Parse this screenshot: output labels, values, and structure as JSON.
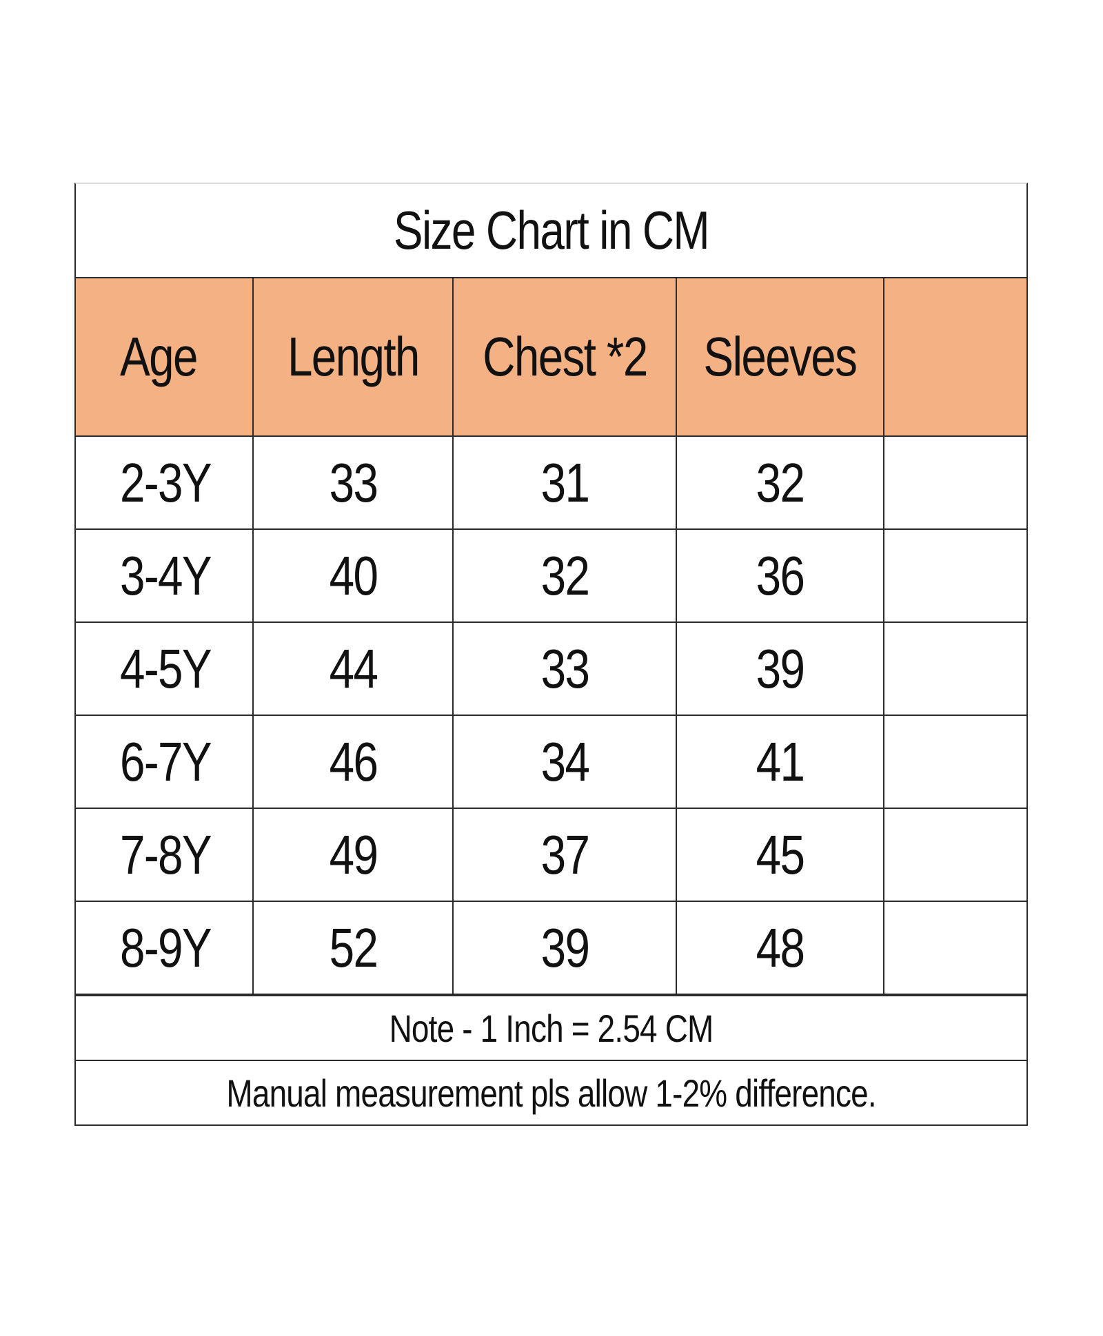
{
  "title": "Size Chart in CM",
  "headers": [
    "Age",
    "Length",
    "Chest *2",
    "Sleeves",
    ""
  ],
  "rows": [
    [
      "2-3Y",
      "33",
      "31",
      "32",
      ""
    ],
    [
      "3-4Y",
      "40",
      "32",
      "36",
      ""
    ],
    [
      "4-5Y",
      "44",
      "33",
      "39",
      ""
    ],
    [
      "6-7Y",
      "46",
      "34",
      "41",
      ""
    ],
    [
      "7-8Y",
      "49",
      "37",
      "45",
      ""
    ],
    [
      "8-9Y",
      "52",
      "39",
      "48",
      ""
    ]
  ],
  "notes": [
    "Note - 1 Inch = 2.54 CM",
    "Manual measurement pls allow 1-2% difference."
  ],
  "colors": {
    "header_bg": "#f4b184",
    "border": "#2b2b2b"
  }
}
